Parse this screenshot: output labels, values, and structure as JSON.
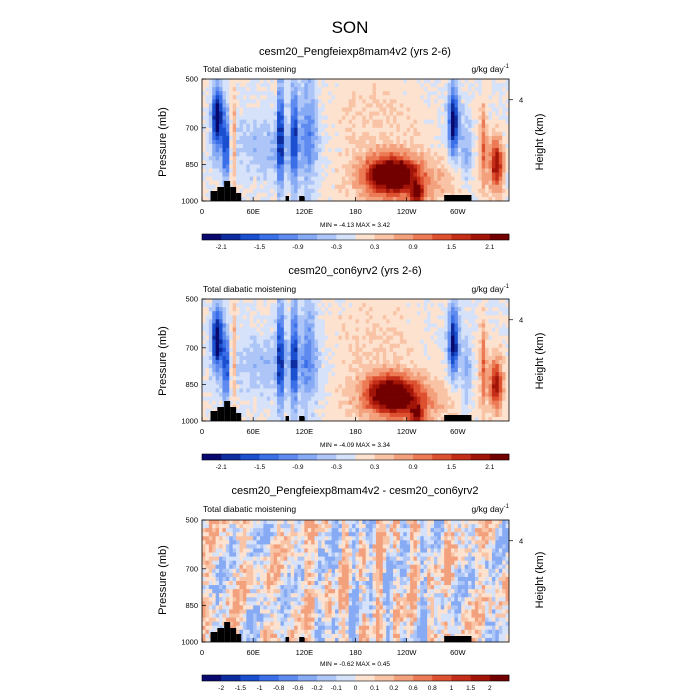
{
  "figure": {
    "title": "SON"
  },
  "chart_data": [
    {
      "type": "heatmap",
      "title": "cesm20_Pengfeiexp8mam4v2 (yrs 2-6)",
      "subtitle": "Total diabatic moistening",
      "units": "g/kg day",
      "units_exp": "-1",
      "ylabel": "Pressure (mb)",
      "ylabel_right": "Height (km)",
      "x_ticks": [
        "0",
        "60E",
        "120E",
        "180",
        "120W",
        "60W"
      ],
      "y_ticks": [
        "500",
        "700",
        "850",
        "1000"
      ],
      "y_right_ticks": [
        "4"
      ],
      "stats": "MIN =  -4.13  MAX =   3.42",
      "colorbar_labels": [
        "-2.1",
        "-1.5",
        "-0.9",
        "-0.3",
        "0.3",
        "0.9",
        "1.5",
        "2.1"
      ],
      "colorbar_levels": [
        -2.4,
        -2.1,
        -1.8,
        -1.5,
        -1.2,
        -0.9,
        -0.6,
        -0.3,
        0,
        0.3,
        0.6,
        0.9,
        1.2,
        1.5,
        1.8,
        2.1,
        2.4
      ],
      "field_scale": 1.0,
      "field_kind": "mean",
      "seed": 11
    },
    {
      "type": "heatmap",
      "title": "cesm20_con6yrv2 (yrs 2-6)",
      "subtitle": "Total diabatic moistening",
      "units": "g/kg day",
      "units_exp": "-1",
      "ylabel": "Pressure (mb)",
      "ylabel_right": "Height (km)",
      "x_ticks": [
        "0",
        "60E",
        "120E",
        "180",
        "120W",
        "60W"
      ],
      "y_ticks": [
        "500",
        "700",
        "850",
        "1000"
      ],
      "y_right_ticks": [
        "4"
      ],
      "stats": "MIN =  -4.09  MAX =   3.34",
      "colorbar_labels": [
        "-2.1",
        "-1.5",
        "-0.9",
        "-0.3",
        "0.3",
        "0.9",
        "1.5",
        "2.1"
      ],
      "colorbar_levels": [
        -2.4,
        -2.1,
        -1.8,
        -1.5,
        -1.2,
        -0.9,
        -0.6,
        -0.3,
        0,
        0.3,
        0.6,
        0.9,
        1.2,
        1.5,
        1.8,
        2.1,
        2.4
      ],
      "field_scale": 0.98,
      "field_kind": "mean",
      "seed": 23
    },
    {
      "type": "heatmap",
      "title": "cesm20_Pengfeiexp8mam4v2 - cesm20_con6yrv2",
      "subtitle": "Total diabatic moistening",
      "units": "g/kg day",
      "units_exp": "-1",
      "ylabel": "Pressure (mb)",
      "ylabel_right": "Height (km)",
      "x_ticks": [
        "0",
        "60E",
        "120E",
        "180",
        "120W",
        "60W"
      ],
      "y_ticks": [
        "500",
        "700",
        "850",
        "1000"
      ],
      "y_right_ticks": [
        "4"
      ],
      "stats": "MIN =  -0.62  MAX =   0.45",
      "colorbar_labels": [
        "-2",
        "-1.5",
        "-1",
        "-0.8",
        "-0.6",
        "-0.2",
        "-0.1",
        "0",
        "0.1",
        "0.2",
        "0.6",
        "0.8",
        "1",
        "1.5",
        "2"
      ],
      "colorbar_levels": [
        -2.5,
        -2,
        -1.5,
        -1,
        -0.8,
        -0.6,
        -0.2,
        -0.1,
        0,
        0.1,
        0.2,
        0.6,
        0.8,
        1,
        1.5,
        2,
        2.5
      ],
      "field_scale": 1.0,
      "field_kind": "diff",
      "seed": 37
    }
  ],
  "palette": [
    "#08086e",
    "#0c2ca0",
    "#1a4fd0",
    "#3a6fe8",
    "#5f8bf0",
    "#86aaf4",
    "#adc6f7",
    "#d5e2fa",
    "#fde2cf",
    "#f9c3a6",
    "#f3a07d",
    "#ec7a55",
    "#de5130",
    "#c42d18",
    "#a31408",
    "#730000"
  ]
}
